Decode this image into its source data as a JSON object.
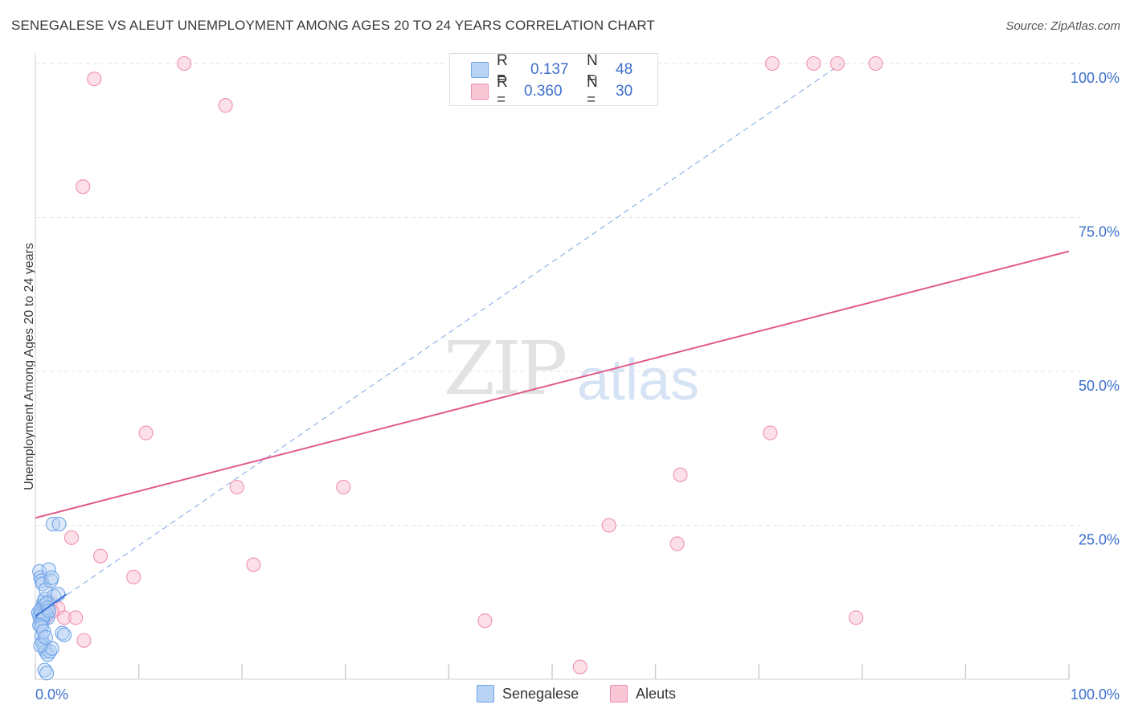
{
  "title": "SENEGALESE VS ALEUT UNEMPLOYMENT AMONG AGES 20 TO 24 YEARS CORRELATION CHART",
  "source": "Source: ZipAtlas.com",
  "watermark": {
    "zip": "ZIP",
    "atlas": "atlas"
  },
  "colors": {
    "blue": "#6fa3e8",
    "blue_fill": "#b9d3f5",
    "pink": "#f08fb0",
    "pink_fill": "#f9c6d6",
    "pink_line": "#e0588a",
    "blue_line": "#5b8ee0",
    "axis_text": "#3d6fcc"
  },
  "legend": {
    "r_label": "R =",
    "n_label": "N =",
    "rows": [
      {
        "r": "0.137",
        "n": "48"
      },
      {
        "r": "0.360",
        "n": "30"
      }
    ]
  },
  "bottom_legend": [
    "Senegalese",
    "Aleuts"
  ],
  "chart_data": {
    "type": "scatter",
    "title": "SENEGALESE VS ALEUT UNEMPLOYMENT AMONG AGES 20 TO 24 YEARS CORRELATION CHART",
    "xlabel": "",
    "ylabel": "Unemployment Among Ages 20 to 24 years",
    "xlim": [
      0,
      100
    ],
    "ylim": [
      0,
      100
    ],
    "x_tick_labels": [
      "0.0%",
      "100.0%"
    ],
    "y_tick_labels": [
      "25.0%",
      "50.0%",
      "75.0%",
      "100.0%"
    ],
    "y_ticks": [
      25,
      50,
      75,
      100
    ],
    "series": [
      {
        "name": "Senegalese",
        "r": 0.137,
        "n": 48,
        "trend": {
          "x": [
            0,
            3
          ],
          "y": [
            10.2,
            13.8
          ],
          "style": "solid"
        },
        "trend_extended": {
          "x": [
            0,
            78
          ],
          "y": [
            10.2,
            100
          ],
          "style": "dashed"
        },
        "points": [
          [
            0.4,
            17.5
          ],
          [
            0.5,
            16.5
          ],
          [
            0.6,
            16.0
          ],
          [
            0.7,
            15.5
          ],
          [
            0.8,
            12.5
          ],
          [
            0.9,
            11.5
          ],
          [
            1.0,
            11.0
          ],
          [
            1.1,
            10.5
          ],
          [
            1.2,
            10.0
          ],
          [
            0.5,
            9.5
          ],
          [
            0.6,
            9.0
          ],
          [
            0.7,
            11.8
          ],
          [
            0.8,
            12.0
          ],
          [
            0.9,
            13.0
          ],
          [
            1.0,
            14.5
          ],
          [
            1.3,
            17.8
          ],
          [
            1.5,
            16.0
          ],
          [
            1.6,
            16.5
          ],
          [
            1.8,
            13.5
          ],
          [
            2.2,
            13.8
          ],
          [
            1.7,
            25.2
          ],
          [
            2.3,
            25.2
          ],
          [
            0.6,
            7.0
          ],
          [
            0.7,
            6.0
          ],
          [
            0.8,
            5.5
          ],
          [
            0.9,
            5.0
          ],
          [
            1.0,
            4.5
          ],
          [
            1.2,
            4.0
          ],
          [
            1.4,
            4.5
          ],
          [
            1.6,
            5.0
          ],
          [
            0.5,
            5.5
          ],
          [
            0.9,
            1.5
          ],
          [
            1.1,
            1.0
          ],
          [
            2.6,
            7.5
          ],
          [
            2.8,
            7.2
          ],
          [
            0.3,
            10.8
          ],
          [
            0.4,
            10.3
          ],
          [
            0.5,
            11.2
          ],
          [
            0.6,
            10.7
          ],
          [
            0.7,
            9.8
          ],
          [
            0.8,
            10.4
          ],
          [
            1.1,
            12.3
          ],
          [
            1.2,
            11.6
          ],
          [
            1.3,
            11.1
          ],
          [
            0.4,
            8.8
          ],
          [
            0.6,
            8.5
          ],
          [
            0.8,
            7.8
          ],
          [
            1.0,
            6.8
          ]
        ]
      },
      {
        "name": "Aleuts",
        "r": 0.36,
        "n": 30,
        "trend": {
          "x": [
            0,
            100
          ],
          "y": [
            26.2,
            69.5
          ],
          "style": "solid"
        },
        "points": [
          [
            14.4,
            100
          ],
          [
            5.7,
            97.5
          ],
          [
            18.4,
            93.2
          ],
          [
            4.6,
            80.0
          ],
          [
            71.3,
            100
          ],
          [
            75.3,
            100
          ],
          [
            77.6,
            100
          ],
          [
            81.3,
            100
          ],
          [
            10.7,
            40.0
          ],
          [
            71.1,
            40.0
          ],
          [
            19.5,
            31.2
          ],
          [
            29.8,
            31.2
          ],
          [
            62.4,
            33.2
          ],
          [
            3.5,
            23.0
          ],
          [
            6.3,
            20.0
          ],
          [
            21.1,
            18.6
          ],
          [
            9.5,
            16.6
          ],
          [
            55.5,
            25.0
          ],
          [
            62.1,
            22.0
          ],
          [
            1.5,
            12.5
          ],
          [
            2.2,
            11.5
          ],
          [
            2.8,
            10.0
          ],
          [
            3.9,
            10.0
          ],
          [
            1.0,
            10.0
          ],
          [
            0.8,
            12.0
          ],
          [
            1.6,
            11.0
          ],
          [
            4.7,
            6.3
          ],
          [
            43.5,
            9.5
          ],
          [
            79.4,
            10.0
          ],
          [
            52.7,
            2.0
          ]
        ]
      }
    ]
  }
}
